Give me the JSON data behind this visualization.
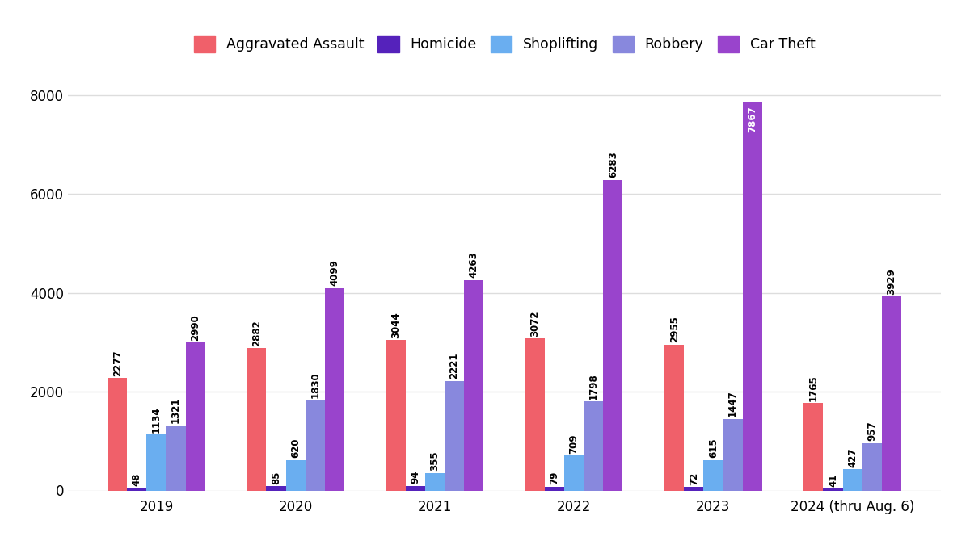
{
  "years": [
    "2019",
    "2020",
    "2021",
    "2022",
    "2023",
    "2024 (thru Aug. 6)"
  ],
  "categories": [
    "Aggravated Assault",
    "Homicide",
    "Shoplifting",
    "Robbery",
    "Car Theft"
  ],
  "colors": [
    "#f0606a",
    "#5522bb",
    "#6aaef0",
    "#8888dd",
    "#9944cc"
  ],
  "values": {
    "Aggravated Assault": [
      2277,
      2882,
      3044,
      3072,
      2955,
      1765
    ],
    "Homicide": [
      48,
      85,
      94,
      79,
      72,
      41
    ],
    "Shoplifting": [
      1134,
      620,
      355,
      709,
      615,
      427
    ],
    "Robbery": [
      1321,
      1830,
      2221,
      1798,
      1447,
      957
    ],
    "Car Theft": [
      2990,
      4099,
      4263,
      6283,
      7867,
      3929
    ]
  },
  "ylim": [
    0,
    8600
  ],
  "yticks": [
    0,
    2000,
    4000,
    6000,
    8000
  ],
  "bar_width": 0.14,
  "background_color": "#ffffff",
  "label_fontsize": 8.5,
  "tick_fontsize": 12,
  "legend_fontsize": 12.5,
  "grid_color": "#dddddd",
  "car_theft_white_labels": [
    "2023"
  ],
  "figsize": [
    12.0,
    6.75
  ],
  "dpi": 100
}
